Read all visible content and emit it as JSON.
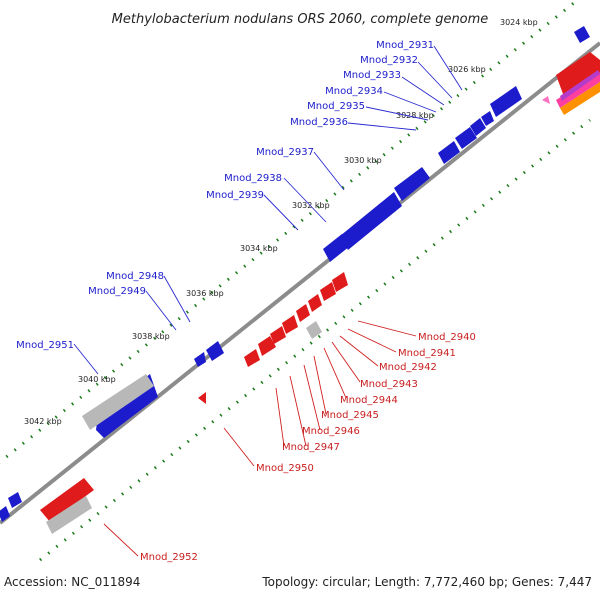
{
  "title": "Methylobacterium nodulans ORS 2060, complete genome",
  "footer": {
    "accession": "Accession: NC_011894",
    "stats": "Topology: circular; Length: 7,772,460 bp; Genes: 7,447"
  },
  "colors": {
    "forward_gene": "#1c1ccc",
    "reverse_gene": "#e01b1b",
    "pseudo_gene": "#b8b8b8",
    "backbone": "#8c8c8c",
    "tick": "#1a7a1a",
    "leader_blue": "#2a2ad0",
    "leader_red": "#d02020"
  },
  "kbp_labels": [
    "3024 kbp",
    "3026 kbp",
    "3028 kbp",
    "3030 kbp",
    "3032 kbp",
    "3034 kbp",
    "3036 kbp",
    "3038 kbp",
    "3040 kbp",
    "3042 kbp"
  ],
  "forward_genes": [
    "Mnod_2931",
    "Mnod_2932",
    "Mnod_2933",
    "Mnod_2934",
    "Mnod_2935",
    "Mnod_2936",
    "Mnod_2937",
    "Mnod_2938",
    "Mnod_2939",
    "Mnod_2948",
    "Mnod_2949",
    "Mnod_2951"
  ],
  "reverse_genes": [
    "Mnod_2940",
    "Mnod_2941",
    "Mnod_2942",
    "Mnod_2943",
    "Mnod_2944",
    "Mnod_2945",
    "Mnod_2946",
    "Mnod_2947",
    "Mnod_2950",
    "Mnod_2952"
  ]
}
